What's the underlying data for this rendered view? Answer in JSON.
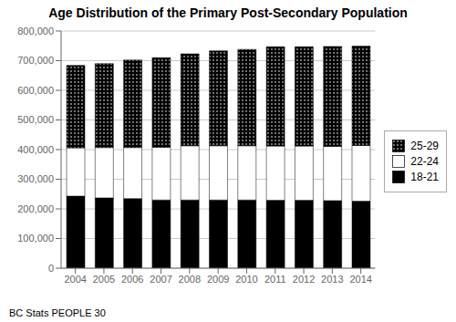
{
  "chart_data": {
    "type": "bar",
    "title": "Age Distribution of the Primary Post-Secondary Population",
    "categories": [
      "2004",
      "2005",
      "2006",
      "2007",
      "2008",
      "2009",
      "2010",
      "2011",
      "2012",
      "2013",
      "2014"
    ],
    "series": [
      {
        "name": "18-21",
        "color": "#000000",
        "values": [
          243000,
          237000,
          235000,
          230000,
          230000,
          230000,
          230000,
          229000,
          229000,
          228000,
          226000
        ]
      },
      {
        "name": "22-24",
        "color": "#ffffff",
        "values": [
          163000,
          170000,
          172000,
          178000,
          183000,
          183000,
          183000,
          183000,
          183000,
          183000,
          188000
        ]
      },
      {
        "name": "25-29",
        "color": "#000000",
        "values": [
          278000,
          283000,
          295000,
          302000,
          310000,
          320000,
          325000,
          335000,
          335000,
          337000,
          335000
        ]
      }
    ],
    "stacked": true,
    "ylim": [
      0,
      800000
    ],
    "yticks": [
      0,
      {
        "value": 100000,
        "label": "100,000"
      },
      {
        "value": 200000,
        "label": "200,000"
      },
      {
        "value": 300000,
        "label": "300,000"
      },
      {
        "value": 400000,
        "label": "400,000"
      },
      {
        "value": 500000,
        "label": "500,000"
      },
      {
        "value": 600000,
        "label": "600,000"
      },
      {
        "value": 700000,
        "label": "700,000"
      },
      {
        "value": 800000,
        "label": "800,000"
      }
    ],
    "grid": true,
    "legend": "right",
    "annotations": [
      "BC Stats PEOPLE 30"
    ]
  }
}
